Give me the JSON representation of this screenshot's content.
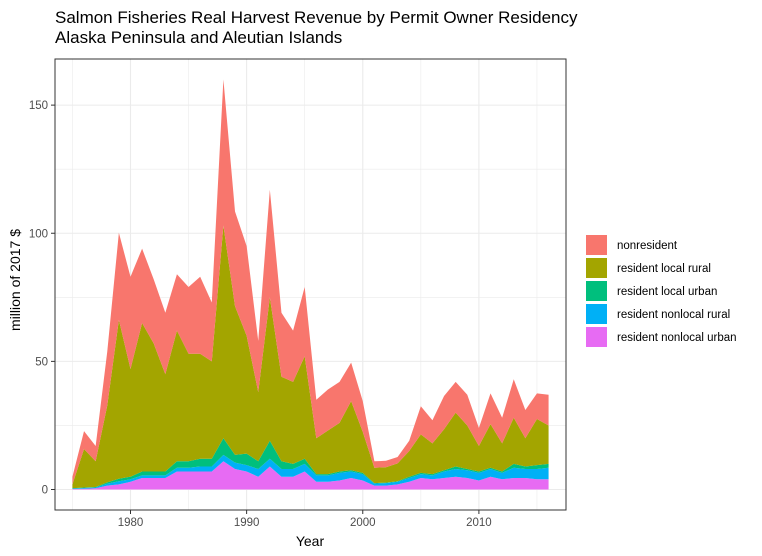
{
  "chart_data": {
    "type": "area",
    "stacked": true,
    "title": "Salmon Fisheries Real Harvest Revenue by Permit Owner Residency",
    "subtitle": "Alaska Peninsula and Aleutian Islands",
    "xlabel": "Year",
    "ylabel": "million of 2017 $",
    "xlim": [
      1973.5,
      2017.5
    ],
    "ylim": [
      -8,
      168
    ],
    "xticks": [
      1980,
      1990,
      2000,
      2010
    ],
    "yticks": [
      0,
      50,
      100,
      150
    ],
    "grid": true,
    "legend_position": "right",
    "x": [
      1975,
      1976,
      1977,
      1978,
      1979,
      1980,
      1981,
      1982,
      1983,
      1984,
      1985,
      1986,
      1987,
      1988,
      1989,
      1990,
      1991,
      1992,
      1993,
      1994,
      1995,
      1996,
      1997,
      1998,
      1999,
      2000,
      2001,
      2002,
      2003,
      2004,
      2005,
      2006,
      2007,
      2008,
      2009,
      2010,
      2011,
      2012,
      2013,
      2014,
      2015,
      2016
    ],
    "series": [
      {
        "name": "resident nonlocal urban",
        "color": "#e76bf3",
        "values": [
          0.2,
          0.3,
          0.5,
          1.5,
          2,
          3,
          4.5,
          4.5,
          4.5,
          7,
          7,
          7,
          7,
          11,
          8,
          7,
          5,
          9,
          5,
          5,
          7,
          3,
          3,
          3.5,
          4.5,
          3.5,
          1.5,
          1.5,
          2,
          3,
          4.5,
          4,
          4.5,
          5,
          4.5,
          3.5,
          5,
          4,
          4.5,
          4.5,
          4,
          4
        ]
      },
      {
        "name": "resident nonlocal rural",
        "color": "#00b0f6",
        "values": [
          0.2,
          0.3,
          0.3,
          0.8,
          1.2,
          1,
          1,
          1,
          1,
          1.5,
          1.5,
          2,
          2,
          2.5,
          2.5,
          2.5,
          3,
          3,
          3,
          3,
          3,
          2.5,
          2.5,
          3,
          2.5,
          2.5,
          0.8,
          1,
          1,
          1.5,
          1.5,
          1.5,
          2.5,
          3,
          3,
          3,
          3,
          2.5,
          4,
          3.5,
          4,
          4.5
        ]
      },
      {
        "name": "resident local urban",
        "color": "#00bf7d",
        "values": [
          0.1,
          0.2,
          0.2,
          0.5,
          1,
          1,
          1.5,
          1.5,
          1.5,
          2.5,
          2.5,
          3,
          3,
          6.5,
          3,
          4.5,
          3,
          7,
          3,
          2,
          2,
          0.5,
          0.5,
          0.5,
          0.5,
          0.5,
          0.2,
          0.2,
          0.2,
          0.5,
          0.5,
          0.5,
          0.5,
          1,
          0.5,
          0.5,
          0.5,
          0.5,
          1.5,
          1,
          1.5,
          1.5
        ]
      },
      {
        "name": "resident local rural",
        "color": "#a3a500",
        "values": [
          1.5,
          15,
          10,
          30,
          62,
          42,
          58,
          50,
          38,
          51,
          42,
          41,
          38,
          83,
          58,
          46,
          27,
          56,
          33,
          32,
          40,
          14,
          17,
          19,
          27,
          16,
          6,
          6,
          7,
          10,
          15,
          12,
          16,
          21,
          17,
          10,
          17,
          11,
          18,
          11,
          18,
          15
        ]
      },
      {
        "name": "nonresident",
        "color": "#f8766d",
        "values": [
          3,
          7,
          6,
          21,
          34,
          36,
          29,
          25,
          24,
          22,
          26,
          30,
          23,
          57,
          37,
          35,
          20,
          42,
          25,
          20,
          27,
          15,
          16,
          16,
          15,
          12,
          2.5,
          2.5,
          2.5,
          4,
          11,
          9,
          13,
          12,
          12,
          7,
          12,
          10,
          15,
          11,
          10,
          12
        ]
      }
    ]
  },
  "legend": {
    "items": [
      {
        "label": "nonresident",
        "color": "#f8766d"
      },
      {
        "label": "resident local rural",
        "color": "#a3a500"
      },
      {
        "label": "resident local urban",
        "color": "#00bf7d"
      },
      {
        "label": "resident nonlocal rural",
        "color": "#00b0f6"
      },
      {
        "label": "resident nonlocal urban",
        "color": "#e76bf3"
      }
    ]
  },
  "colors": {
    "panel_border": "#333333",
    "grid": "#ebebeb",
    "background": "#ffffff"
  }
}
